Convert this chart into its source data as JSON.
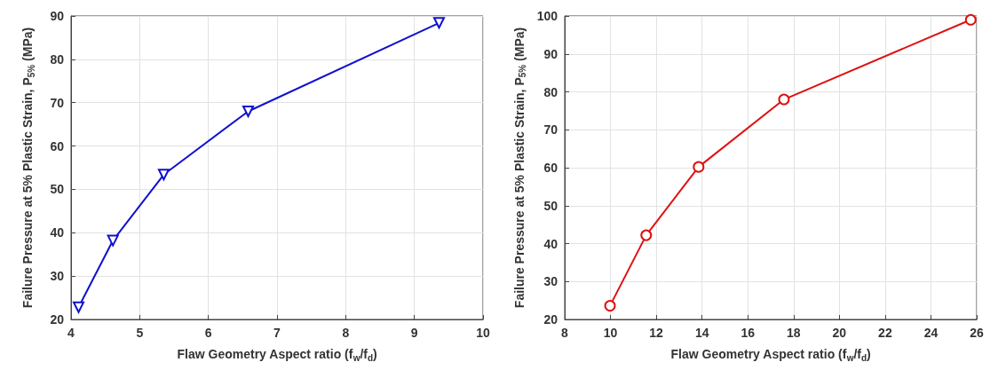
{
  "chart_data": [
    {
      "type": "line",
      "xlabel": "Flaw Geometry Aspect ratio (f$_{w}$/f$_{d}$)",
      "ylabel": "Failure Pressure at 5% Plastic Strain, P$_{5%}$ (MPa)",
      "x": [
        4.11,
        4.61,
        5.35,
        6.58,
        9.36
      ],
      "series": [
        {
          "color": "#1010d0",
          "values": [
            22.8,
            38.2,
            53.4,
            68.0,
            88.4
          ]
        }
      ],
      "xlim": [
        4,
        10
      ],
      "xticks": [
        4,
        5,
        6,
        7,
        8,
        9,
        10
      ],
      "ylim": [
        20,
        90
      ],
      "yticks": [
        20,
        30,
        40,
        50,
        60,
        70,
        80,
        90
      ],
      "grid": true,
      "marker": "triangle",
      "line_style": "solid"
    },
    {
      "type": "line",
      "xlabel": "Flaw Geometry Aspect ratio (f$_{w}$/f$_{d}$)",
      "ylabel": "Failure Pressure at 5% Plastic Strain, P$_{5%}$ (MPa)",
      "x": [
        9.98,
        11.56,
        13.85,
        17.58,
        25.74
      ],
      "series": [
        {
          "color": "#dd1111",
          "values": [
            23.6,
            42.2,
            60.2,
            78.0,
            99.0
          ]
        }
      ],
      "xlim": [
        8,
        26
      ],
      "xticks": [
        8,
        10,
        12,
        14,
        16,
        18,
        20,
        22,
        24,
        26
      ],
      "ylim": [
        20,
        100
      ],
      "yticks": [
        20,
        30,
        40,
        50,
        60,
        70,
        80,
        90,
        100
      ],
      "grid": true,
      "marker": "circle",
      "line_style": "solid"
    }
  ]
}
